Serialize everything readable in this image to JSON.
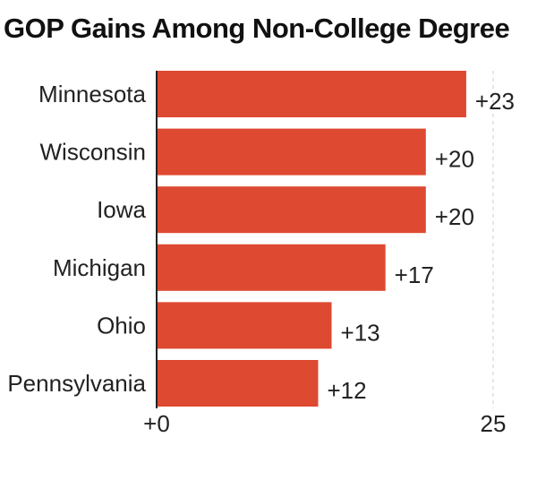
{
  "chart_data": {
    "type": "bar",
    "orientation": "horizontal",
    "title": "GOP Gains Among Non-College Degree",
    "categories": [
      "Minnesota",
      "Wisconsin",
      "Iowa",
      "Michigan",
      "Ohio",
      "Pennsylvania"
    ],
    "values": [
      23,
      20,
      20,
      17,
      13,
      12
    ],
    "value_labels": [
      "+23",
      "+20",
      "+20",
      "+17",
      "+13",
      "+12"
    ],
    "xlim": [
      0,
      25
    ],
    "x_ticks": [
      0,
      25
    ],
    "x_tick_labels": [
      "+0",
      "25"
    ],
    "bar_color": "#DE4931",
    "gridline_at_max": true
  }
}
